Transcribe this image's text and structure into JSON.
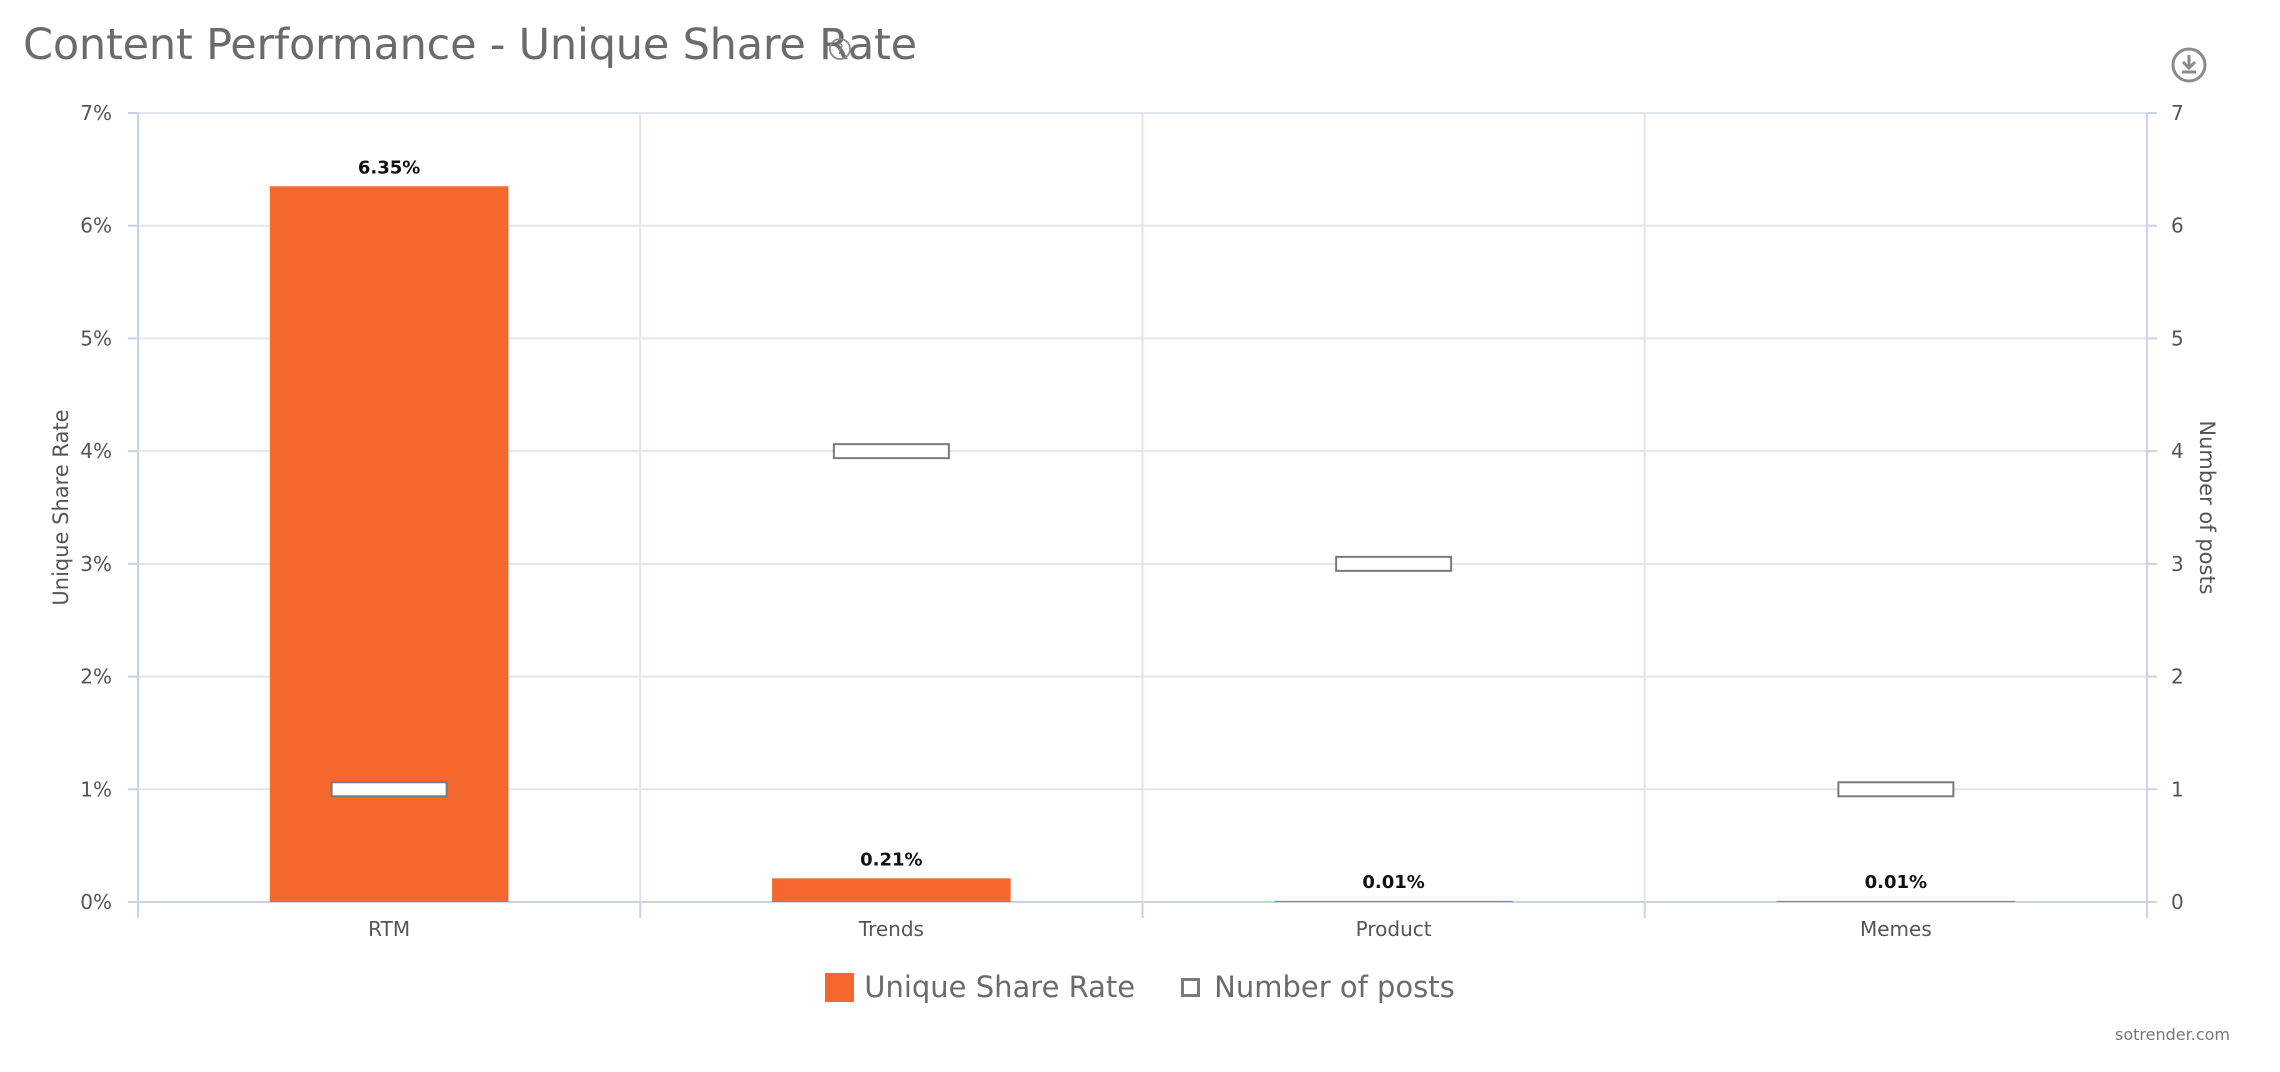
{
  "header": {
    "title": "Content Performance - Unique Share Rate",
    "help_icon": "question-circle-icon",
    "download_icon": "download-icon"
  },
  "credit": "sotrender.com",
  "colors": {
    "bar": "#f4682e",
    "grid": "#e1e6ee",
    "axis": "#c9d3e3",
    "text": "#555555",
    "marker_stroke": "#7a7a7a"
  },
  "legend": [
    {
      "label": "Unique Share Rate",
      "kind": "bar"
    },
    {
      "label": "Number of posts",
      "kind": "marker"
    }
  ],
  "chart_data": {
    "type": "bar",
    "title": "Content Performance - Unique Share Rate",
    "categories": [
      "RTM",
      "Trends",
      "Product",
      "Memes"
    ],
    "series": [
      {
        "name": "Unique Share Rate",
        "type": "bar",
        "axis": "left",
        "values": [
          6.35,
          0.21,
          0.01,
          0.01
        ],
        "labels": [
          "6.35%",
          "0.21%",
          "0.01%",
          "0.01%"
        ]
      },
      {
        "name": "Number of posts",
        "type": "marker",
        "axis": "right",
        "values": [
          1,
          4,
          3,
          1
        ]
      }
    ],
    "ylabel": "Unique Share Rate",
    "y2label": "Number of posts",
    "ylim": [
      0,
      7
    ],
    "y2lim": [
      0,
      7
    ],
    "yticks": [
      "0%",
      "1%",
      "2%",
      "3%",
      "4%",
      "5%",
      "6%",
      "7%"
    ],
    "y2ticks": [
      "0",
      "1",
      "2",
      "3",
      "4",
      "5",
      "6",
      "7"
    ],
    "grid": true,
    "legend_position": "bottom-center"
  }
}
